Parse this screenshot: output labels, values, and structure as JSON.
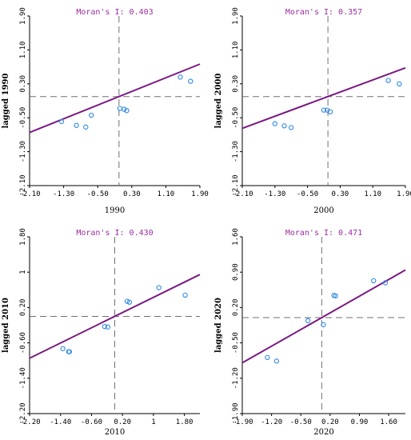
{
  "chart_data": [
    {
      "type": "scatter",
      "title": "Moran's I: 0.403",
      "xlabel": "1990",
      "ylabel": "lagged 1990",
      "xlim": [
        -2.1,
        1.9
      ],
      "ylim": [
        -2.1,
        1.9
      ],
      "xticks": [
        "-2.10",
        "-1.30",
        "-0.50",
        "0.30",
        "1.10",
        "1.90"
      ],
      "yticks": [
        "-2.10",
        "-1.30",
        "-0.50",
        "0.30",
        "1.10",
        "1.90"
      ],
      "x": [
        -1.35,
        -1.0,
        -0.78,
        -0.65,
        0.02,
        0.12,
        0.18,
        1.44,
        1.68
      ],
      "y": [
        -0.59,
        -0.68,
        -0.72,
        -0.44,
        -0.28,
        -0.3,
        -0.33,
        0.46,
        0.36
      ],
      "mean_x": 0.0,
      "mean_y": 0.0,
      "regression": {
        "slope": 0.403,
        "intercept": 0.0
      },
      "grid": false,
      "legend": "none"
    },
    {
      "type": "scatter",
      "title": "Moran's I: 0.357",
      "xlabel": "2000",
      "ylabel": "lagged 2000",
      "xlim": [
        -2.1,
        1.9
      ],
      "ylim": [
        -2.1,
        1.9
      ],
      "xticks": [
        "-2.10",
        "-1.30",
        "-0.50",
        "0.30",
        "1.10",
        "1.90"
      ],
      "yticks": [
        "-2.10",
        "-1.30",
        "-0.50",
        "0.30",
        "1.10",
        "1.90"
      ],
      "x": [
        -1.3,
        -1.07,
        -0.9,
        -0.1,
        -0.02,
        0.06,
        1.48,
        1.75
      ],
      "y": [
        -0.64,
        -0.69,
        -0.73,
        -0.32,
        -0.32,
        -0.36,
        0.38,
        0.3
      ],
      "mean_x": 0.0,
      "mean_y": 0.0,
      "regression": {
        "slope": 0.357,
        "intercept": 0.0
      },
      "grid": false,
      "legend": "none"
    },
    {
      "type": "scatter",
      "title": "Moran's I: 0.430",
      "xlabel": "2010",
      "ylabel": "lagged 2010",
      "xlim": [
        -2.2,
        2.2
      ],
      "ylim": [
        -2.2,
        1.8
      ],
      "xticks": [
        "-2.20",
        "-1.40",
        "-0.60",
        "0.20",
        "1",
        "1.80"
      ],
      "yticks": [
        "-2.20",
        "-1.40",
        "-0.60",
        "0.20",
        "1",
        "1.80"
      ],
      "x": [
        -1.34,
        -1.19,
        -1.17,
        -0.26,
        -0.18,
        0.32,
        0.38,
        1.14,
        1.82
      ],
      "y": [
        -0.73,
        -0.8,
        -0.8,
        -0.23,
        -0.24,
        0.34,
        0.32,
        0.65,
        0.48
      ],
      "mean_x": 0.0,
      "mean_y": 0.0,
      "regression": {
        "slope": 0.43,
        "intercept": 0.0
      },
      "grid": false,
      "legend": "none"
    },
    {
      "type": "scatter",
      "title": "Moran's I: 0.471",
      "xlabel": "2020",
      "ylabel": "lagged 2020",
      "xlim": [
        -1.9,
        2.0
      ],
      "ylim": [
        -1.9,
        1.6
      ],
      "xticks": [
        "-1.90",
        "-1.20",
        "-0.50",
        "0.20",
        "0.90",
        "1.60"
      ],
      "yticks": [
        "-1.90",
        "-1.20",
        "-0.50",
        "0.20",
        "0.90",
        "1.60"
      ],
      "x": [
        -1.3,
        -1.08,
        -0.33,
        0.04,
        0.29,
        0.33,
        1.24,
        1.52
      ],
      "y": [
        -0.79,
        -0.86,
        -0.06,
        -0.14,
        0.44,
        0.43,
        0.73,
        0.69
      ],
      "mean_x": 0.0,
      "mean_y": 0.0,
      "regression": {
        "slope": 0.471,
        "intercept": 0.0
      },
      "grid": false,
      "legend": "none"
    }
  ],
  "colors": {
    "title": "#9b2fa0",
    "regression_line": "#7a1a82",
    "points": "#3a8fe8",
    "axis": "#000000",
    "mean_lines": "#707070"
  }
}
